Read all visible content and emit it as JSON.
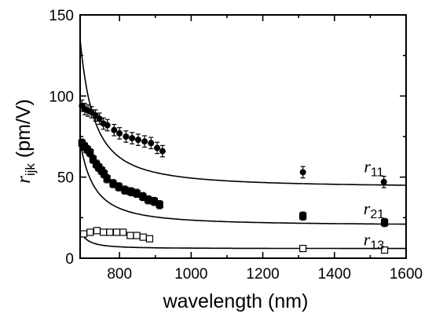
{
  "chart_data": {
    "type": "scatter",
    "xlabel": "wavelength (nm)",
    "ylabel_main": "r",
    "ylabel_sub": "ijk",
    "ylabel_unit": " (pm/V)",
    "xlim": [
      690,
      1600
    ],
    "ylim": [
      0,
      150
    ],
    "xticks": [
      800,
      1000,
      1200,
      1400,
      1600
    ],
    "yticks": [
      0,
      50,
      100,
      150
    ],
    "series": [
      {
        "name_main": "r",
        "name_sub": "11",
        "label_pos": [
          1510,
          53
        ],
        "marker": "circle",
        "filled": true,
        "x": [
          695,
          703,
          712,
          722,
          733,
          744,
          755,
          766,
          785,
          800,
          818,
          835,
          852,
          870,
          888,
          905,
          920,
          1312,
          1538
        ],
        "y": [
          94,
          92,
          91,
          90,
          88,
          86,
          83,
          82,
          79,
          77,
          75,
          74,
          73,
          72,
          71,
          68,
          66,
          53,
          47
        ],
        "err": 3.5,
        "fit": {
          "y_inf": 45,
          "A": 76,
          "lambda0": 620
        }
      },
      {
        "name_main": "r",
        "name_sub": "21",
        "label_pos": [
          1510,
          27
        ],
        "marker": "square",
        "filled": true,
        "x": [
          695,
          702,
          710,
          718,
          726,
          735,
          742,
          750,
          757,
          765,
          782,
          798,
          815,
          832,
          848,
          865,
          880,
          897,
          912,
          1312,
          1540
        ],
        "y": [
          71,
          69,
          67,
          65,
          61,
          58,
          56,
          54,
          52,
          49,
          46,
          44,
          42,
          41,
          40,
          38,
          36,
          35,
          33,
          26,
          22
        ],
        "err": 2.5,
        "fit": {
          "y_inf": 21,
          "A": 40,
          "lambda0": 620
        }
      },
      {
        "name_main": "r",
        "name_sub": "13",
        "label_pos": [
          1510,
          8
        ],
        "marker": "square",
        "filled": false,
        "x": [
          700,
          718,
          737,
          755,
          773,
          792,
          810,
          830,
          848,
          866,
          884,
          1312,
          1540
        ],
        "y": [
          15,
          16,
          17,
          16,
          16,
          16,
          16,
          14,
          14,
          13,
          12,
          6,
          5
        ],
        "err": 0,
        "fit": {
          "y_inf": 6,
          "A": 5,
          "lambda0": 650
        }
      }
    ]
  }
}
